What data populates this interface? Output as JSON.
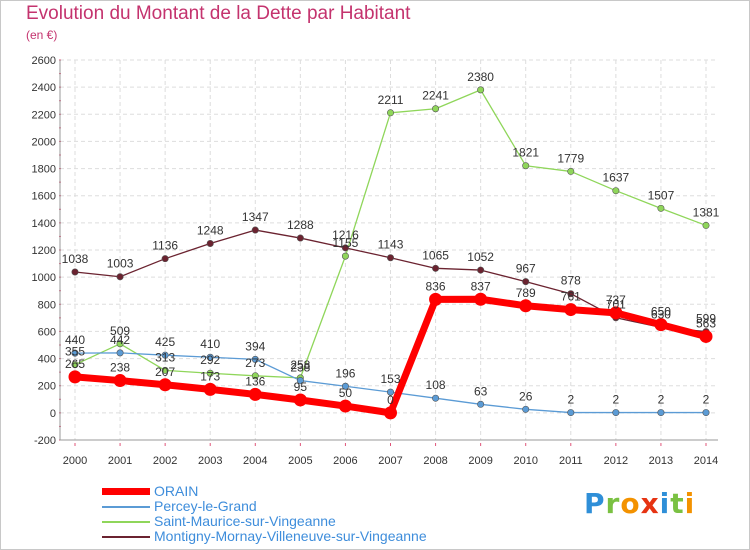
{
  "header": {
    "title": "Evolution du Montant de la Dette par Habitant",
    "subtitle": "(en €)"
  },
  "logo": {
    "text": "Proxiti",
    "letters": [
      {
        "ch": "P",
        "color": "#2f8fd8"
      },
      {
        "ch": "r",
        "color": "#7ac142"
      },
      {
        "ch": "o",
        "color": "#f39200"
      },
      {
        "ch": "x",
        "color": "#e63312"
      },
      {
        "ch": "i",
        "color": "#2f8fd8"
      },
      {
        "ch": "t",
        "color": "#7ac142"
      },
      {
        "ch": "i",
        "color": "#f39200"
      }
    ]
  },
  "chart_data": {
    "type": "line",
    "title": "Evolution du Montant de la Dette par Habitant",
    "subtitle": "(en €)",
    "xlabel": "",
    "ylabel": "",
    "ylim": [
      -200,
      2600
    ],
    "yticks": [
      -200,
      0,
      200,
      400,
      600,
      800,
      1000,
      1200,
      1400,
      1600,
      1800,
      2000,
      2200,
      2400,
      2600
    ],
    "grid": true,
    "legend": "bottom-left",
    "categories": [
      "2000",
      "2001",
      "2002",
      "2003",
      "2004",
      "2005",
      "2006",
      "2007",
      "2008",
      "2009",
      "2010",
      "2011",
      "2012",
      "2013",
      "2014"
    ],
    "series": [
      {
        "name": "ORAIN",
        "color": "#ff0000",
        "values": [
          265,
          238,
          207,
          173,
          136,
          95,
          50,
          0,
          836,
          837,
          789,
          761,
          737,
          650,
          563
        ]
      },
      {
        "name": "Percey-le-Grand",
        "color": "#5b9bd5",
        "values": [
          440,
          442,
          425,
          410,
          394,
          238,
          196,
          153,
          108,
          63,
          26,
          2,
          2,
          2,
          2
        ]
      },
      {
        "name": "Saint-Maurice-sur-Vingeanne",
        "color": "#8fd65a",
        "values": [
          355,
          509,
          313,
          292,
          273,
          258,
          1155,
          2211,
          2241,
          2380,
          1821,
          1779,
          1637,
          1507,
          1381
        ]
      },
      {
        "name": "Montigny-Mornay-Villeneuve-sur-Vingeanne",
        "color": "#6b2330",
        "values": [
          1038,
          1003,
          1136,
          1248,
          1347,
          1288,
          1216,
          1143,
          1065,
          1052,
          967,
          878,
          701,
          630,
          599
        ]
      }
    ]
  }
}
